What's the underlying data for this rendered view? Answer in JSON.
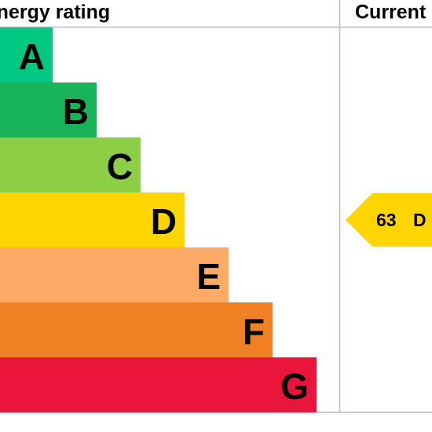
{
  "header": {
    "title": "Energy rating",
    "current": "Current"
  },
  "bands": [
    {
      "letter": "A",
      "color": "#00c781"
    },
    {
      "letter": "B",
      "color": "#19b459"
    },
    {
      "letter": "C",
      "color": "#8dce46"
    },
    {
      "letter": "D",
      "color": "#ffd500"
    },
    {
      "letter": "E",
      "color": "#fcaa65"
    },
    {
      "letter": "F",
      "color": "#ef8023"
    },
    {
      "letter": "G",
      "color": "#e9153b"
    }
  ],
  "current": {
    "score": 63,
    "band": "D",
    "color": "#ffd500"
  }
}
